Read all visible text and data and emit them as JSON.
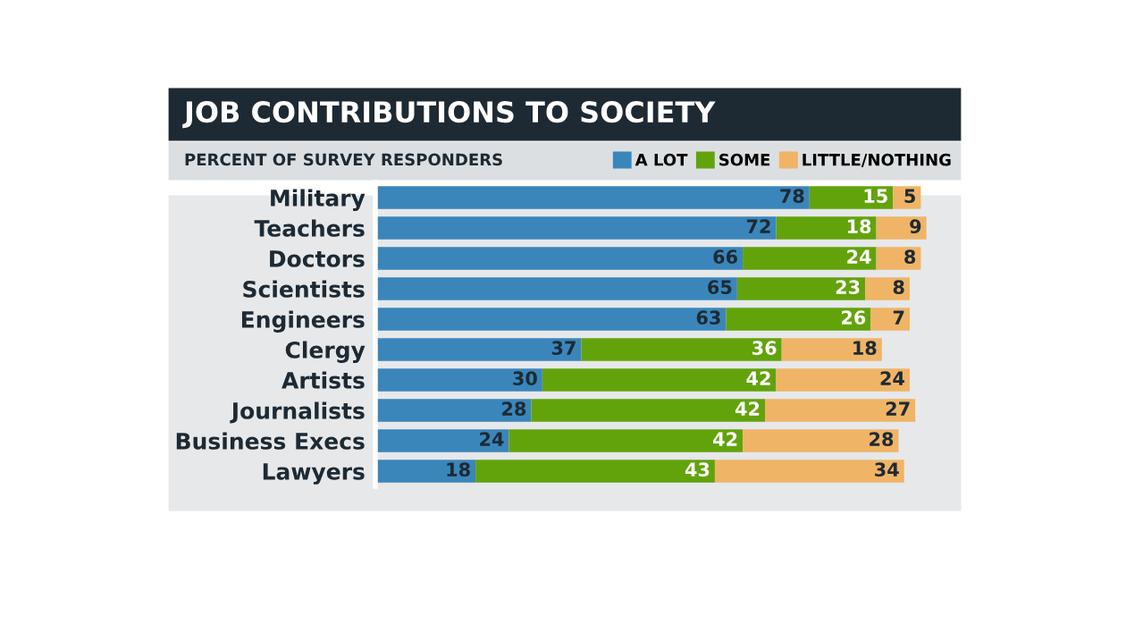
{
  "chart_data": {
    "type": "bar",
    "orientation": "horizontal",
    "stacked": true,
    "title": "JOB CONTRIBUTIONS TO SOCIETY",
    "subtitle": "PERCENT OF SURVEY RESPONDERS",
    "categories": [
      "Military",
      "Teachers",
      "Doctors",
      "Scientists",
      "Engineers",
      "Clergy",
      "Artists",
      "Journalists",
      "Business Execs",
      "Lawyers"
    ],
    "series": [
      {
        "name": "A LOT",
        "color": "#3a86bb",
        "values": [
          78,
          72,
          66,
          65,
          63,
          37,
          30,
          28,
          24,
          18
        ]
      },
      {
        "name": "SOME",
        "color": "#62a30c",
        "values": [
          15,
          18,
          24,
          23,
          26,
          36,
          42,
          42,
          42,
          43
        ]
      },
      {
        "name": "LITTLE/NOTHING",
        "color": "#f0b466",
        "values": [
          5,
          9,
          8,
          8,
          7,
          18,
          24,
          27,
          28,
          34
        ]
      }
    ],
    "xlim": [
      0,
      105
    ],
    "data_labels": true,
    "legend": "top right",
    "grid": false
  }
}
